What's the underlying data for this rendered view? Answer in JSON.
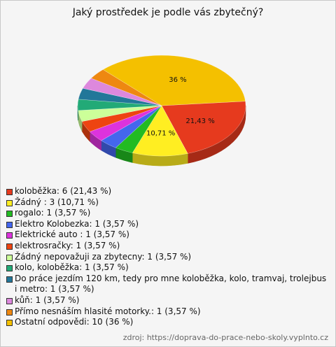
{
  "chart_data": {
    "type": "pie",
    "title": "Jaký prostředek je podle vás zbytečný?",
    "categories": [
      "koloběžka: 6 (21,43 %)",
      "Žádný : 3 (10,71 %)",
      "rogalo: 1 (3,57 %)",
      "Elektro Kolobezka: 1 (3,57 %)",
      "Elektrické auto : 1 (3,57 %)",
      "elektrosračky: 1 (3,57 %)",
      "Žádný nepovažuji za zbytecny: 1 (3,57 %)",
      "kolo, koloběžka: 1 (3,57 %)",
      "Do práce jezdím 120 km, tedy pro mne koloběžka, kolo, tramvaj, trolejbus i metro: 1 (3,57 %)",
      "kůň: 1 (3,57 %)",
      "Přímo nesnáším hlasité motorky.: 1 (3,57 %)",
      "Ostatní odpovědi: 10 (36 %)"
    ],
    "values": [
      21.43,
      10.71,
      3.57,
      3.57,
      3.57,
      3.57,
      3.57,
      3.57,
      3.57,
      3.57,
      3.57,
      36
    ],
    "value_labels": [
      "21,43 %",
      "10,71 %",
      null,
      null,
      null,
      null,
      null,
      null,
      null,
      null,
      null,
      "36 %"
    ],
    "colors": [
      "#e63a1e",
      "#ffee22",
      "#22bb22",
      "#4466ee",
      "#dd33dd",
      "#ee4411",
      "#ccff99",
      "#22aa77",
      "#227799",
      "#dd88dd",
      "#ee8811",
      "#f4c000"
    ],
    "source": "zdroj: https://doprava-do-prace-nebo-skoly.vyplnto.cz"
  }
}
